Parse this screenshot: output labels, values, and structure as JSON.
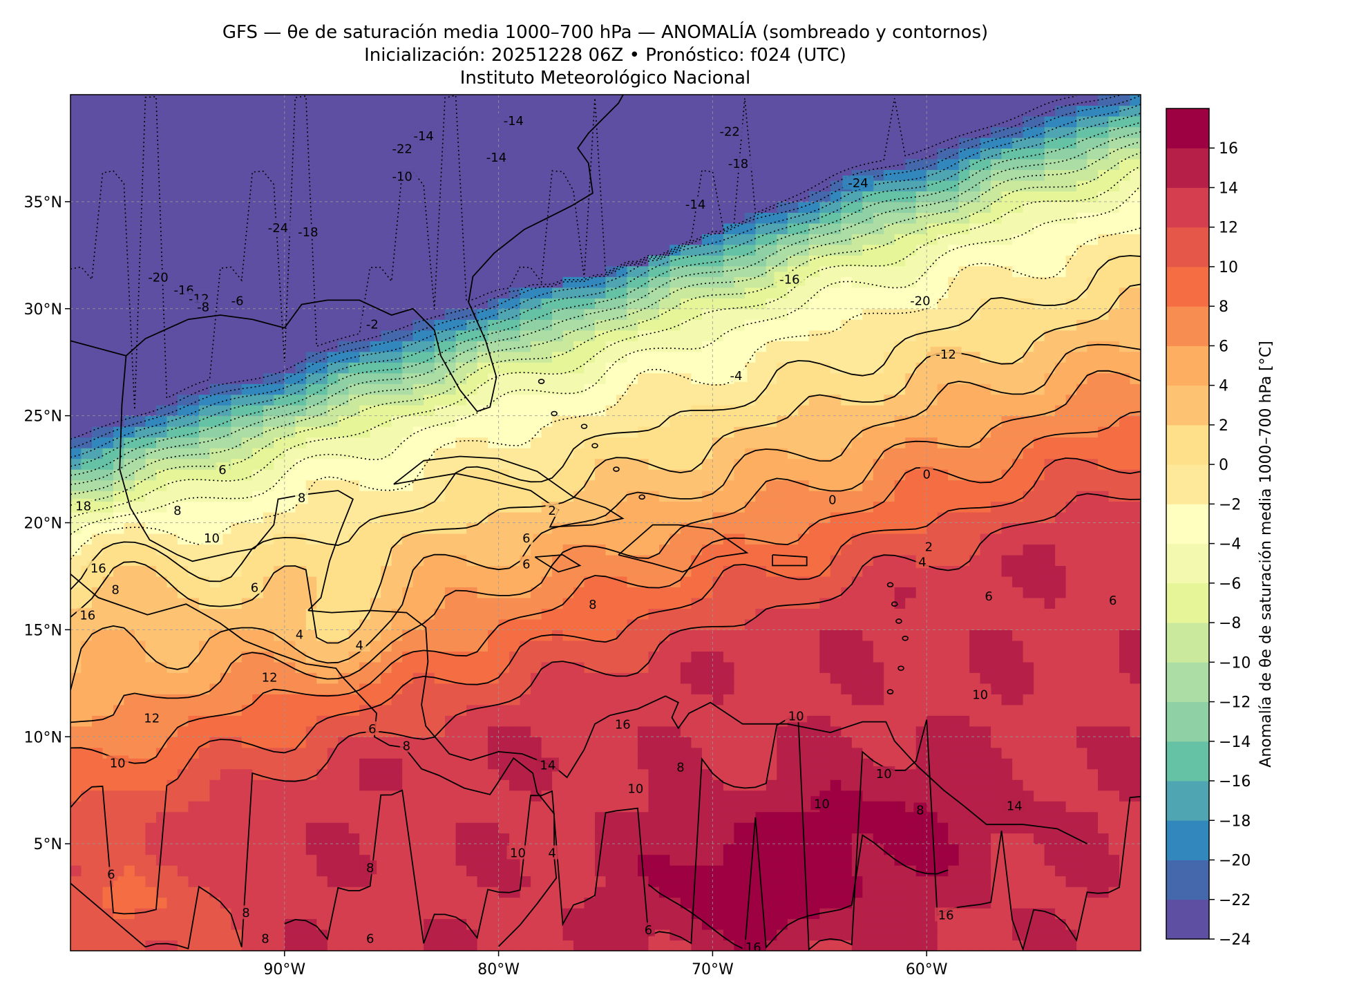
{
  "title": {
    "line1": "GFS — θe de saturación media 1000–700 hPa — ANOMALÍA (sombreado y contornos)",
    "line2": "Inicialización: 20251228 06Z   •   Pronóstico: f024 (UTC)",
    "line3": "Instituto Meteorológico Nacional"
  },
  "map": {
    "lat_range": [
      0,
      40
    ],
    "lon_range": [
      -100,
      -50
    ],
    "lat_ticks": [
      {
        "lat": 35,
        "label": "35°N"
      },
      {
        "lat": 30,
        "label": "30°N"
      },
      {
        "lat": 25,
        "label": "25°N"
      },
      {
        "lat": 20,
        "label": "20°N"
      },
      {
        "lat": 15,
        "label": "15°N"
      },
      {
        "lat": 10,
        "label": "10°N"
      },
      {
        "lat": 5,
        "label": "5°N"
      }
    ],
    "lon_ticks": [
      {
        "lon": -90,
        "label": "90°W"
      },
      {
        "lon": -80,
        "label": "80°W"
      },
      {
        "lon": -70,
        "label": "70°W"
      },
      {
        "lon": -60,
        "label": "60°W"
      }
    ],
    "contour_labels": [
      {
        "text": "-24",
        "lon": -90.3,
        "lat": 33.8
      },
      {
        "text": "-18",
        "lon": -88.9,
        "lat": 33.6
      },
      {
        "text": "-22",
        "lon": -84.5,
        "lat": 37.5
      },
      {
        "text": "-10",
        "lon": -84.5,
        "lat": 36.2
      },
      {
        "text": "-14",
        "lon": -83.5,
        "lat": 38.1
      },
      {
        "text": "-14",
        "lon": -79.3,
        "lat": 38.8
      },
      {
        "text": "-14",
        "lon": -80.1,
        "lat": 37.1
      },
      {
        "text": "-22",
        "lon": -69.2,
        "lat": 38.3
      },
      {
        "text": "-18",
        "lon": -68.8,
        "lat": 36.8
      },
      {
        "text": "-24",
        "lon": -63.2,
        "lat": 35.9
      },
      {
        "text": "-14",
        "lon": -70.8,
        "lat": 34.9
      },
      {
        "text": "-16",
        "lon": -66.4,
        "lat": 31.4
      },
      {
        "text": "-20",
        "lon": -60.3,
        "lat": 30.4
      },
      {
        "text": "-12",
        "lon": -59.1,
        "lat": 27.9
      },
      {
        "text": "-4",
        "lon": -68.9,
        "lat": 26.9
      },
      {
        "text": "-20",
        "lon": -95.9,
        "lat": 31.5
      },
      {
        "text": "-16",
        "lon": -94.7,
        "lat": 30.9
      },
      {
        "text": "-12",
        "lon": -94.0,
        "lat": 30.5
      },
      {
        "text": "-8",
        "lon": -93.8,
        "lat": 30.1
      },
      {
        "text": "-6",
        "lon": -92.2,
        "lat": 30.4
      },
      {
        "text": "-2",
        "lon": -85.9,
        "lat": 29.3
      },
      {
        "text": "0",
        "lon": -60.0,
        "lat": 22.3
      },
      {
        "text": "0",
        "lon": -64.4,
        "lat": 21.1
      },
      {
        "text": "2",
        "lon": -59.9,
        "lat": 18.9
      },
      {
        "text": "4",
        "lon": -60.2,
        "lat": 18.2
      },
      {
        "text": "2",
        "lon": -77.5,
        "lat": 20.6
      },
      {
        "text": "6",
        "lon": -78.7,
        "lat": 19.3
      },
      {
        "text": "6",
        "lon": -78.7,
        "lat": 18.1
      },
      {
        "text": "6",
        "lon": -57.1,
        "lat": 16.6
      },
      {
        "text": "6",
        "lon": -51.3,
        "lat": 16.4
      },
      {
        "text": "6",
        "lon": -92.9,
        "lat": 22.5
      },
      {
        "text": "8",
        "lon": -89.2,
        "lat": 21.2
      },
      {
        "text": "8",
        "lon": -95.0,
        "lat": 20.6
      },
      {
        "text": "10",
        "lon": -93.4,
        "lat": 19.3
      },
      {
        "text": "6",
        "lon": -91.4,
        "lat": 17.0
      },
      {
        "text": "16",
        "lon": -98.7,
        "lat": 17.9
      },
      {
        "text": "18",
        "lon": -99.4,
        "lat": 20.8
      },
      {
        "text": "8",
        "lon": -97.9,
        "lat": 16.9
      },
      {
        "text": "16",
        "lon": -99.2,
        "lat": 15.7
      },
      {
        "text": "4",
        "lon": -89.3,
        "lat": 14.8
      },
      {
        "text": "4",
        "lon": -86.5,
        "lat": 14.3
      },
      {
        "text": "12",
        "lon": -90.7,
        "lat": 12.8
      },
      {
        "text": "12",
        "lon": -96.2,
        "lat": 10.9
      },
      {
        "text": "10",
        "lon": -97.8,
        "lat": 8.8
      },
      {
        "text": "6",
        "lon": -85.9,
        "lat": 10.4
      },
      {
        "text": "8",
        "lon": -84.3,
        "lat": 9.6
      },
      {
        "text": "8",
        "lon": -75.6,
        "lat": 16.2
      },
      {
        "text": "10",
        "lon": -57.5,
        "lat": 12.0
      },
      {
        "text": "10",
        "lon": -66.1,
        "lat": 11.0
      },
      {
        "text": "16",
        "lon": -74.2,
        "lat": 10.6
      },
      {
        "text": "14",
        "lon": -77.7,
        "lat": 8.7
      },
      {
        "text": "8",
        "lon": -71.5,
        "lat": 8.6
      },
      {
        "text": "10",
        "lon": -73.6,
        "lat": 7.6
      },
      {
        "text": "10",
        "lon": -62.0,
        "lat": 8.3
      },
      {
        "text": "10",
        "lon": -64.9,
        "lat": 6.9
      },
      {
        "text": "8",
        "lon": -60.3,
        "lat": 6.6
      },
      {
        "text": "14",
        "lon": -55.9,
        "lat": 6.8
      },
      {
        "text": "10",
        "lon": -79.1,
        "lat": 4.6
      },
      {
        "text": "4",
        "lon": -77.5,
        "lat": 4.6
      },
      {
        "text": "8",
        "lon": -86.0,
        "lat": 3.9
      },
      {
        "text": "6",
        "lon": -98.1,
        "lat": 3.6
      },
      {
        "text": "8",
        "lon": -91.8,
        "lat": 1.8
      },
      {
        "text": "8",
        "lon": -90.9,
        "lat": 0.6
      },
      {
        "text": "6",
        "lon": -86.0,
        "lat": 0.6
      },
      {
        "text": "16",
        "lon": -68.1,
        "lat": 0.2
      },
      {
        "text": "6",
        "lon": -73.0,
        "lat": 1.0
      },
      {
        "text": "16",
        "lon": -59.1,
        "lat": 1.7
      }
    ]
  },
  "colorbar": {
    "label": "Anomalía de θe de saturación media 1000–700 hPa [°C]",
    "levels": [
      -24,
      -22,
      -20,
      -18,
      -16,
      -14,
      -12,
      -10,
      -8,
      -6,
      -4,
      -2,
      0,
      2,
      4,
      6,
      8,
      10,
      12,
      14,
      16
    ],
    "tick_labels": [
      "−24",
      "−22",
      "−20",
      "−18",
      "−16",
      "−14",
      "−12",
      "−10",
      "−8",
      "−6",
      "−4",
      "−2",
      "0",
      "2",
      "4",
      "6",
      "8",
      "10",
      "12",
      "14",
      "16"
    ],
    "colors": [
      "#5e4fa2",
      "#4568ac",
      "#3288bd",
      "#4fa5b1",
      "#66c2a5",
      "#8fd1a4",
      "#abdda4",
      "#cbe99d",
      "#e6f598",
      "#f3faaf",
      "#ffffbf",
      "#fee99a",
      "#fee08b",
      "#fdc372",
      "#fdae61",
      "#f88d51",
      "#f46d43",
      "#e55749",
      "#d53e4f",
      "#b51f48",
      "#9e0142"
    ]
  }
}
